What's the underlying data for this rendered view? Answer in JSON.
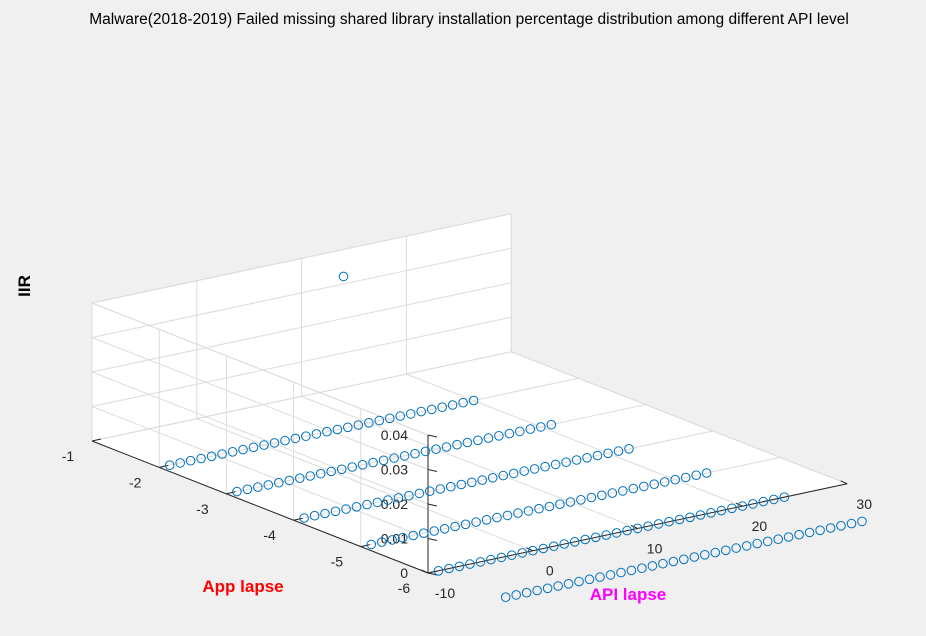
{
  "window": {
    "background": "#f0f0f0"
  },
  "chart_data": {
    "type": "scatter",
    "title": "Malware(2018-2019) Failed missing shared library installation percentage distribution among different API level",
    "xlabel": "API lapse",
    "ylabel": "App lapse",
    "zlabel": "IIR",
    "xlim": [
      -10,
      30
    ],
    "ylim": [
      -6,
      -1
    ],
    "zlim": [
      0,
      0.04
    ],
    "xticks": [
      "-10",
      "0",
      "10",
      "20",
      "30"
    ],
    "yticks": [
      "-1",
      "-2",
      "-3",
      "-4",
      "-5",
      "-6"
    ],
    "zticks": [
      "0",
      "0.01",
      "0.02",
      "0.03",
      "0.04"
    ],
    "grid": true,
    "box": true,
    "marker": "circle",
    "colors": {
      "marker": "#0072bd",
      "xlabel": "#ff00ff",
      "ylabel": "#ff0000",
      "zlabel": "#000000",
      "grid": "#dcdcdc",
      "axes": "#262626"
    },
    "series": [
      {
        "y": -2,
        "x_start": -9,
        "x_end": 20,
        "x_step": 1,
        "z": 0
      },
      {
        "y": -3,
        "x_start": -9,
        "x_end": 21,
        "x_step": 1,
        "z": 0
      },
      {
        "y": -4,
        "x_start": -9,
        "x_end": 22,
        "x_step": 1,
        "z": 0
      },
      {
        "y": -5,
        "x_start": -9,
        "x_end": 23,
        "x_step": 1,
        "z": 0
      },
      {
        "y": -6,
        "x_start": -9,
        "x_end": 24,
        "x_step": 1,
        "z": 0
      },
      {
        "y": -7,
        "x_start": -9,
        "x_end": 25,
        "x_step": 1,
        "z": 0
      }
    ],
    "extra_points": [
      {
        "x": 14,
        "y": -1,
        "z": 0.0322
      }
    ]
  }
}
